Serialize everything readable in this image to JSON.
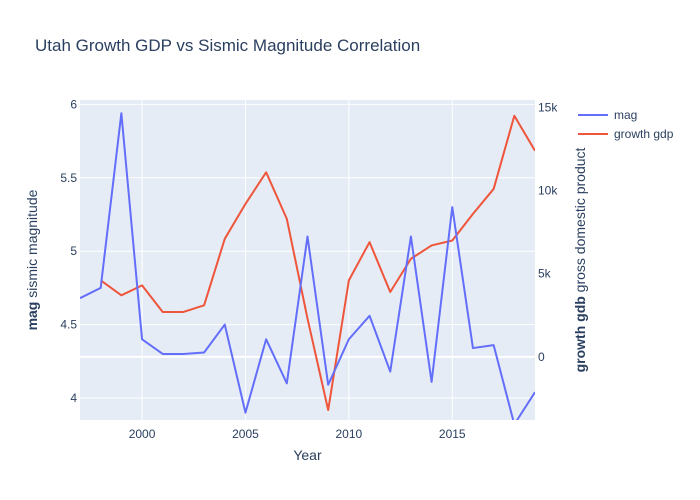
{
  "chart_data": {
    "type": "line",
    "title": "Utah Growth GDP vs Sismic Magnitude Correlation",
    "xlabel": "Year",
    "ylabel_left": {
      "bold": "mag",
      "rest": "sismic magnitude"
    },
    "ylabel_right": {
      "bold": "growth gdb",
      "rest": "gross domestic product"
    },
    "xlim": [
      1997,
      2019
    ],
    "ylim_left": [
      3.85,
      6.03
    ],
    "ylim_right": [
      -3800,
      15450
    ],
    "x_ticks": [
      2000,
      2005,
      2010,
      2015
    ],
    "x_tick_labels": [
      "2000",
      "2005",
      "2010",
      "2015"
    ],
    "y_left_ticks": [
      4,
      4.5,
      5,
      5.5,
      6
    ],
    "y_left_tick_labels": [
      "4",
      "4.5",
      "5",
      "5.5",
      "6"
    ],
    "y_right_ticks": [
      0,
      5000,
      10000,
      15000
    ],
    "y_right_tick_labels": [
      "0",
      "5k",
      "10k",
      "15k"
    ],
    "legend_position": "top-right",
    "grid": true,
    "series": [
      {
        "name": "mag",
        "axis": "left",
        "color": "#636efa",
        "x": [
          1997,
          1998,
          1999,
          2000,
          2001,
          2002,
          2003,
          2004,
          2005,
          2006,
          2007,
          2008,
          2009,
          2010,
          2011,
          2012,
          2013,
          2014,
          2015,
          2016,
          2017,
          2018,
          2019
        ],
        "values": [
          4.68,
          4.75,
          5.94,
          4.4,
          4.3,
          4.3,
          4.31,
          4.5,
          3.9,
          4.4,
          4.1,
          5.1,
          4.09,
          4.4,
          4.56,
          4.18,
          5.1,
          4.11,
          5.3,
          4.34,
          4.36,
          3.82,
          4.04
        ]
      },
      {
        "name": "growth gdp",
        "axis": "right",
        "color": "#ef553b",
        "x": [
          1998,
          1999,
          2000,
          2001,
          2002,
          2003,
          2004,
          2005,
          2006,
          2007,
          2008,
          2009,
          2010,
          2011,
          2012,
          2013,
          2014,
          2015,
          2016,
          2017,
          2018,
          2019
        ],
        "values": [
          4600,
          3700,
          4300,
          2700,
          2700,
          3100,
          7100,
          9200,
          11100,
          8300,
          2300,
          -3200,
          4600,
          6900,
          3900,
          5900,
          6700,
          7000,
          8600,
          10100,
          14500,
          12400
        ]
      }
    ]
  }
}
